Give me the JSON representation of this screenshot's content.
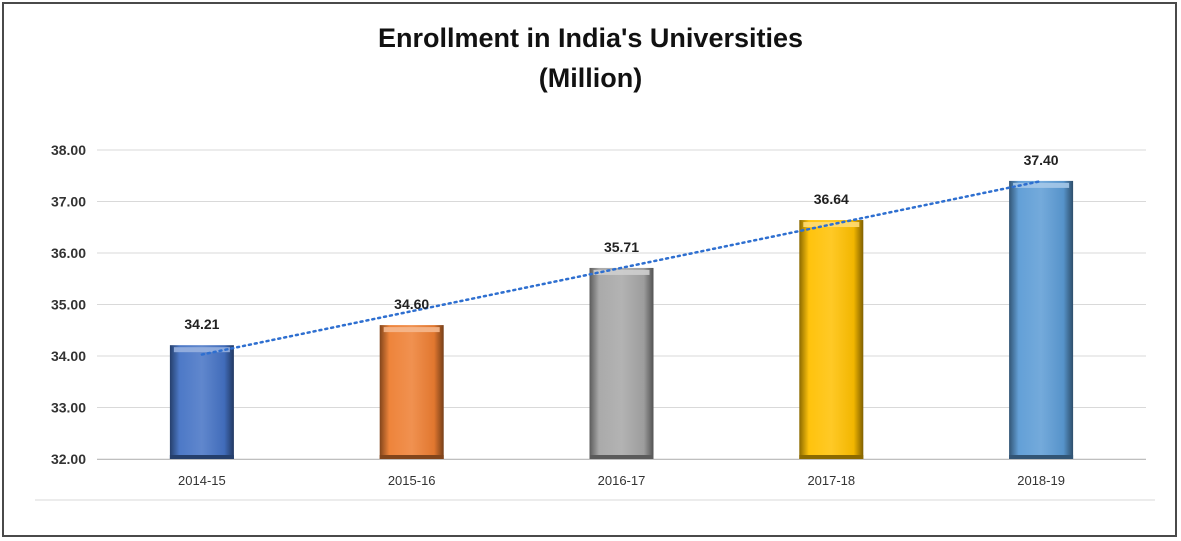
{
  "chart_data": {
    "type": "bar",
    "title": "Enrollment in India's Universities",
    "subtitle": "(Million)",
    "xlabel": "",
    "ylabel": "",
    "categories": [
      "2014-15",
      "2015-16",
      "2016-17",
      "2017-18",
      "2018-19"
    ],
    "values": [
      34.21,
      34.6,
      35.71,
      36.64,
      37.4
    ],
    "value_labels": [
      "34.21",
      "34.60",
      "35.71",
      "36.64",
      "37.40"
    ],
    "ylim": [
      32,
      38
    ],
    "yticks": [
      "32.00",
      "33.00",
      "34.00",
      "35.00",
      "36.00",
      "37.00",
      "38.00"
    ],
    "grid": true,
    "trendline": "linear dotted",
    "colors": [
      "#4472c4",
      "#ed7d31",
      "#a5a5a5",
      "#ffc000",
      "#5b9bd5"
    ],
    "trend_color": "#2e6fd0"
  }
}
